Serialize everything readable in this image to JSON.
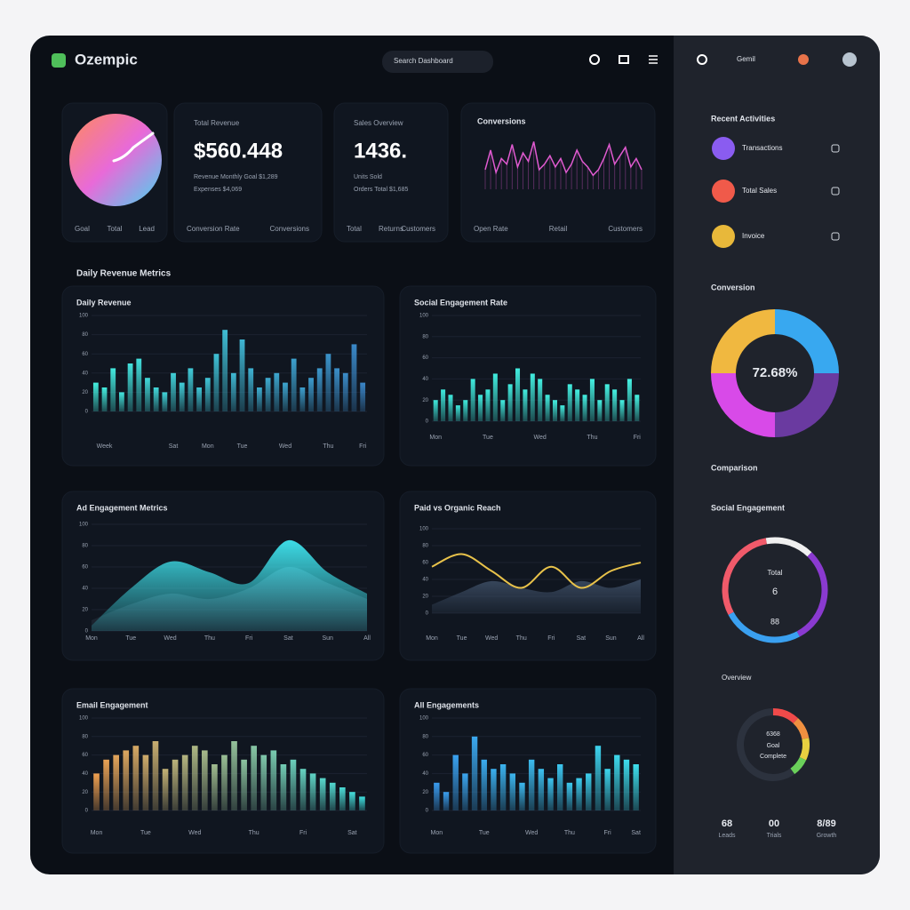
{
  "header": {
    "brand": "Ozempic",
    "search": "Search Dashboard",
    "user": "Gemil"
  },
  "kpis": [
    {
      "type": "pie",
      "values": [
        100
      ],
      "colors": [
        "#ff8a5c",
        "#e86ad8",
        "#46d6f0"
      ],
      "footer": [
        "Goal",
        "Total",
        "Lead"
      ]
    },
    {
      "type": "stat",
      "label": "Total Revenue",
      "value": "$560.448",
      "sub": [
        "Revenue   Monthly Goal  $1,289",
        "Expenses    $4,069"
      ],
      "footer": [
        "Conversion Rate",
        "Conversions"
      ]
    },
    {
      "type": "stat",
      "label": "Sales Overview",
      "value": "1436.",
      "sub": [
        "Units Sold",
        "Orders Total $1,685"
      ],
      "footer": [
        "Total",
        "Returns",
        "Customers"
      ]
    },
    {
      "type": "sparkline",
      "title": "Conversions",
      "color": "#e05ad0",
      "ylim": [
        0,
        100
      ],
      "values": [
        35,
        70,
        30,
        55,
        45,
        80,
        40,
        65,
        50,
        85,
        35,
        45,
        60,
        40,
        55,
        30,
        45,
        70,
        50,
        40,
        25,
        35,
        55,
        80,
        45,
        60,
        75,
        40,
        55,
        35
      ],
      "footer": [
        "Open Rate",
        "Retail",
        "Customers"
      ]
    }
  ],
  "section_title": "Daily Revenue Metrics",
  "charts": [
    {
      "type": "bar",
      "title": "Daily Revenue",
      "ylim": [
        0,
        100
      ],
      "yticks": [
        0,
        20,
        40,
        60,
        80,
        100
      ],
      "colors": [
        "#44f0e0",
        "#3a86c8"
      ],
      "values": [
        30,
        25,
        45,
        20,
        50,
        55,
        35,
        25,
        20,
        40,
        30,
        45,
        25,
        35,
        60,
        85,
        40,
        75,
        45,
        25,
        35,
        40,
        30,
        55,
        25,
        35,
        45,
        60,
        45,
        40,
        70,
        30
      ],
      "categories": [
        null,
        "Week",
        null,
        null,
        null,
        null,
        null,
        null,
        null,
        "Sat",
        null,
        null,
        null,
        "Mon",
        null,
        null,
        null,
        "Tue",
        null,
        null,
        null,
        null,
        "Wed",
        null,
        null,
        null,
        null,
        "Thu",
        null,
        null,
        null,
        "Fri"
      ]
    },
    {
      "type": "bar",
      "title": "Social Engagement Rate",
      "ylim": [
        0,
        100
      ],
      "yticks": [
        0,
        20,
        40,
        60,
        80,
        100
      ],
      "colors": [
        "#3ee8dc",
        "#46f4e4"
      ],
      "values": [
        20,
        30,
        25,
        15,
        20,
        40,
        25,
        30,
        45,
        20,
        35,
        50,
        30,
        45,
        40,
        25,
        20,
        15,
        35,
        30,
        25,
        40,
        20,
        35,
        30,
        20,
        40,
        25
      ],
      "categories": [
        "Mon",
        null,
        null,
        null,
        null,
        null,
        null,
        "Tue",
        null,
        null,
        null,
        null,
        null,
        null,
        "Wed",
        null,
        null,
        null,
        null,
        null,
        null,
        "Thu",
        null,
        null,
        null,
        null,
        null,
        "Fri"
      ]
    },
    {
      "type": "area",
      "title": "Ad Engagement Metrics",
      "ylim": [
        0,
        100
      ],
      "yticks": [
        0,
        20,
        40,
        60,
        80,
        100
      ],
      "categories": [
        "Mon",
        "Tue",
        "Wed",
        "Thu",
        "Fri",
        "Sat",
        "Sun",
        "All"
      ],
      "series": [
        {
          "color": "#3a4656",
          "values": [
            10,
            25,
            35,
            30,
            40,
            60,
            45,
            30
          ]
        },
        {
          "color": "#3fe6f0",
          "values": [
            5,
            40,
            65,
            55,
            45,
            85,
            55,
            35
          ]
        }
      ]
    },
    {
      "type": "line",
      "title": "Paid vs Organic Reach",
      "ylim": [
        0,
        100
      ],
      "yticks": [
        0,
        20,
        40,
        60,
        80,
        100
      ],
      "categories": [
        "Mon",
        "Tue",
        "Wed",
        "Thu",
        "Fri",
        "Sat",
        "Sun",
        "All"
      ],
      "series": [
        {
          "color": "#e8c24a",
          "values": [
            55,
            70,
            50,
            30,
            55,
            30,
            50,
            60
          ]
        },
        {
          "color": "#3a4a60",
          "values": [
            10,
            25,
            38,
            30,
            25,
            38,
            30,
            40
          ]
        }
      ]
    },
    {
      "type": "bar",
      "title": "Email Engagement",
      "ylim": [
        0,
        100
      ],
      "yticks": [
        0,
        20,
        40,
        60,
        80,
        100
      ],
      "colors": [
        "#f0a050",
        "#3ee0e0"
      ],
      "values": [
        40,
        55,
        60,
        65,
        70,
        60,
        75,
        45,
        55,
        60,
        70,
        65,
        50,
        60,
        75,
        55,
        70,
        60,
        65,
        50,
        55,
        45,
        40,
        35,
        30,
        25,
        20,
        15
      ],
      "categories": [
        "Mon",
        null,
        null,
        null,
        null,
        "Tue",
        null,
        null,
        null,
        null,
        "Wed",
        null,
        null,
        null,
        null,
        null,
        "Thu",
        null,
        null,
        null,
        null,
        "Fri",
        null,
        null,
        null,
        null,
        "Sat",
        null
      ]
    },
    {
      "type": "bar",
      "title": "All Engagements",
      "ylim": [
        0,
        100
      ],
      "yticks": [
        0,
        20,
        40,
        60,
        80,
        100
      ],
      "colors": [
        "#3a9cf0",
        "#3ee0ee"
      ],
      "values": [
        30,
        20,
        60,
        40,
        80,
        55,
        45,
        50,
        40,
        30,
        55,
        45,
        35,
        50,
        30,
        35,
        40,
        70,
        45,
        60,
        55,
        50
      ],
      "categories": [
        "Mon",
        null,
        null,
        null,
        null,
        "Tue",
        null,
        null,
        null,
        null,
        "Wed",
        null,
        null,
        null,
        "Thu",
        null,
        null,
        null,
        "Fri",
        null,
        null,
        "Sat"
      ]
    }
  ],
  "sidebar": {
    "activity_title": "Recent Activities",
    "activities": [
      {
        "label": "Transactions",
        "color": "#8a5cf0"
      },
      {
        "label": "Total Sales",
        "color": "#f05a4a"
      },
      {
        "label": "Invoice",
        "color": "#e8b83a"
      }
    ],
    "conversion": {
      "type": "donut",
      "title": "Conversion",
      "center": "72.68%",
      "values": [
        25,
        25,
        25,
        25
      ],
      "colors": [
        "#f0b840",
        "#38a8f0",
        "#6a3aa0",
        "#d84ae8"
      ]
    },
    "comparison_title": "Comparison",
    "social": {
      "type": "donut",
      "title": "Social Engagement",
      "center": [
        "Total",
        "6",
        "88"
      ],
      "values": [
        15,
        30,
        25,
        30
      ],
      "colors": [
        "#f0f0f0",
        "#8a3ad0",
        "#3aa0f0",
        "#f05a6a"
      ]
    },
    "overview": {
      "type": "donut",
      "title": "Overview",
      "center": [
        "6368",
        "Goal",
        "Complete"
      ],
      "values": [
        12,
        10,
        10,
        8,
        60
      ],
      "colors": [
        "#f04a4a",
        "#f09040",
        "#e8d040",
        "#6ad05a",
        "#2c323e"
      ]
    },
    "stats": [
      {
        "value": "68",
        "label": "Leads"
      },
      {
        "value": "00",
        "label": "Trials"
      },
      {
        "value": "8/89",
        "label": "Growth"
      }
    ]
  }
}
